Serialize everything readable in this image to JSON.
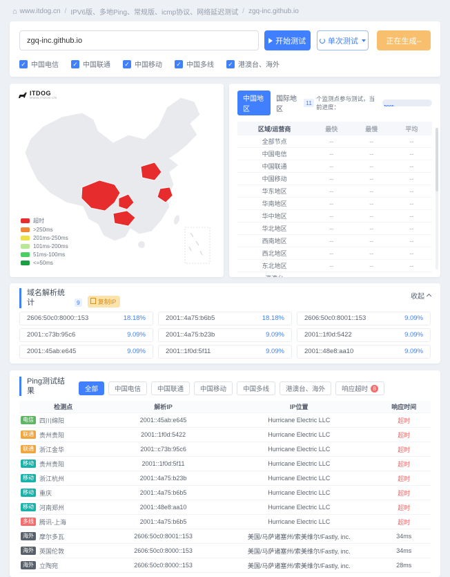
{
  "breadcrumb": {
    "site": "www.itdog.cn",
    "separator": "/",
    "path": "IPV6版、多地Ping、常规版、icmp协议、网络延迟测试",
    "target": "zgq-inc.github.io"
  },
  "test_bar": {
    "input_value": "zgq-inc.github.io",
    "start_button": "开始测试",
    "mode_button": "单次测试",
    "generating_button": "正在生成--",
    "checkboxes": [
      "中国电信",
      "中国联通",
      "中国移动",
      "中国多线",
      "港澳台、海外"
    ]
  },
  "map": {
    "logo": "ITDOG",
    "logo_sub": "WWW.ITDOG.CN",
    "colors": {
      "land": "#e9eaee",
      "timeout": "#e62c2c"
    },
    "legend": [
      {
        "label": "超时",
        "color": "#e62c2c"
      },
      {
        "label": ">250ms",
        "color": "#f0883a"
      },
      {
        "label": "201ms-250ms",
        "color": "#eee04d"
      },
      {
        "label": "101ms-200ms",
        "color": "#b9e796"
      },
      {
        "label": "51ms-100ms",
        "color": "#4ccf62"
      },
      {
        "label": "<=50ms",
        "color": "#1d9e42"
      }
    ]
  },
  "region_panel": {
    "tabs": [
      {
        "label": "中国地区",
        "active": true
      },
      {
        "label": "国际地区",
        "active": false
      }
    ],
    "monitor_count": "11",
    "progress_label": "个监测点参与测试，当前进度：",
    "progress_text": "100%",
    "progress_pct": 100,
    "headers": [
      "区域/运营商",
      "最快",
      "最慢",
      "平均"
    ],
    "rows": [
      {
        "name": "全部节点",
        "fast": "--",
        "slow": "--",
        "avg": "--"
      },
      {
        "name": "中国电信",
        "fast": "--",
        "slow": "--",
        "avg": "--"
      },
      {
        "name": "中国联通",
        "fast": "--",
        "slow": "--",
        "avg": "--"
      },
      {
        "name": "中国移动",
        "fast": "--",
        "slow": "--",
        "avg": "--"
      },
      {
        "name": "华东地区",
        "fast": "--",
        "slow": "--",
        "avg": "--"
      },
      {
        "name": "华南地区",
        "fast": "--",
        "slow": "--",
        "avg": "--"
      },
      {
        "name": "华中地区",
        "fast": "--",
        "slow": "--",
        "avg": "--"
      },
      {
        "name": "华北地区",
        "fast": "--",
        "slow": "--",
        "avg": "--"
      },
      {
        "name": "西南地区",
        "fast": "--",
        "slow": "--",
        "avg": "--"
      },
      {
        "name": "西北地区",
        "fast": "--",
        "slow": "--",
        "avg": "--"
      },
      {
        "name": "东北地区",
        "fast": "--",
        "slow": "--",
        "avg": "--"
      },
      {
        "name": "港澳台",
        "fast": "--",
        "slow": "--",
        "avg": "--"
      }
    ]
  },
  "dns_panel": {
    "title": "域名解析统计",
    "count_badge": "9",
    "copy_button": "复制IP",
    "collapse_button": "收起",
    "cards": [
      {
        "ip": "2606:50c0:8000::153",
        "pct": "18.18%"
      },
      {
        "ip": "2001::4a75:b6b5",
        "pct": "18.18%"
      },
      {
        "ip": "2606:50c0:8001::153",
        "pct": "9.09%"
      },
      {
        "ip": "2001::c73b:95c6",
        "pct": "9.09%"
      },
      {
        "ip": "2001::4a75:b23b",
        "pct": "9.09%"
      },
      {
        "ip": "2001::1f0d:5422",
        "pct": "9.09%"
      },
      {
        "ip": "2001::45ab:e645",
        "pct": "9.09%"
      },
      {
        "ip": "2001::1f0d:5f11",
        "pct": "9.09%"
      },
      {
        "ip": "2001::48e8:aa10",
        "pct": "9.09%"
      }
    ]
  },
  "ping_panel": {
    "title": "Ping测试结果",
    "filters": [
      {
        "label": "全部",
        "active": true
      },
      {
        "label": "中国电信",
        "active": false
      },
      {
        "label": "中国联通",
        "active": false
      },
      {
        "label": "中国移动",
        "active": false
      },
      {
        "label": "中国多线",
        "active": false
      },
      {
        "label": "港澳台、海外",
        "active": false
      },
      {
        "label": "响应超时",
        "active": false,
        "badge": "8"
      }
    ],
    "headers": [
      "检测点",
      "解析IP",
      "IP位置",
      "响应时间"
    ],
    "isp_colors": {
      "电信": "#5eb564",
      "联通": "#f0a63e",
      "移动": "#17b3ab",
      "多线": "#f56c6c",
      "海外": "#57606b"
    },
    "timeout_color": "#f56c6c",
    "normal_time_color": "#59616e",
    "rows": [
      {
        "isp": "电信",
        "point": "四川绵阳",
        "ip": "2001::45ab:e645",
        "location": "Hurricane Electric LLC",
        "time": "超时",
        "timeout": true
      },
      {
        "isp": "联通",
        "point": "贵州贵阳",
        "ip": "2001::1f0d:5422",
        "location": "Hurricane Electric LLC",
        "time": "超时",
        "timeout": true
      },
      {
        "isp": "联通",
        "point": "浙江金华",
        "ip": "2001::c73b:95c6",
        "location": "Hurricane Electric LLC",
        "time": "超时",
        "timeout": true
      },
      {
        "isp": "移动",
        "point": "贵州贵阳",
        "ip": "2001::1f0d:5f11",
        "location": "Hurricane Electric LLC",
        "time": "超时",
        "timeout": true
      },
      {
        "isp": "移动",
        "point": "浙江杭州",
        "ip": "2001::4a75:b23b",
        "location": "Hurricane Electric LLC",
        "time": "超时",
        "timeout": true
      },
      {
        "isp": "移动",
        "point": "重庆",
        "ip": "2001::4a75:b6b5",
        "location": "Hurricane Electric LLC",
        "time": "超时",
        "timeout": true
      },
      {
        "isp": "移动",
        "point": "河南郑州",
        "ip": "2001::48e8:aa10",
        "location": "Hurricane Electric LLC",
        "time": "超时",
        "timeout": true
      },
      {
        "isp": "多线",
        "point": "腾讯-上海",
        "ip": "2001::4a75:b6b5",
        "location": "Hurricane Electric LLC",
        "time": "超时",
        "timeout": true
      },
      {
        "isp": "海外",
        "point": "摩尔多瓦",
        "ip": "2606:50c0:8001::153",
        "location": "美国/马萨诸塞州/索美维尔/Fastly, inc.",
        "time": "34ms",
        "timeout": false
      },
      {
        "isp": "海外",
        "point": "英国伦敦",
        "ip": "2606:50c0:8000::153",
        "location": "美国/马萨诸塞州/索美维尔/Fastly, inc.",
        "time": "34ms",
        "timeout": false
      },
      {
        "isp": "海外",
        "point": "立陶宛",
        "ip": "2606:50c0:8000::153",
        "location": "美国/马萨诸塞州/索美维尔/Fastly, inc.",
        "time": "28ms",
        "timeout": false
      }
    ]
  }
}
